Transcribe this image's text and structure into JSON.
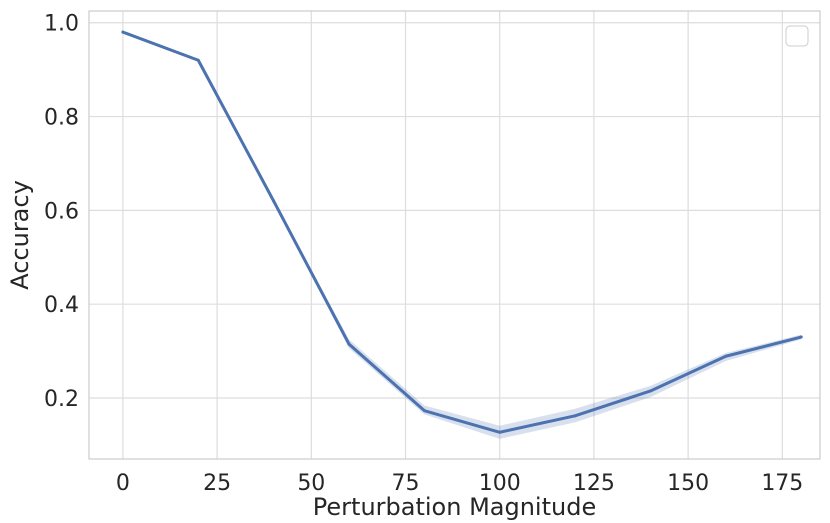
{
  "chart_data": {
    "type": "line",
    "title": "",
    "xlabel": "Perturbation Magnitude",
    "ylabel": "Accuracy",
    "xlim": [
      -9,
      185
    ],
    "ylim": [
      0.07,
      1.025
    ],
    "xticks": [
      0,
      25,
      50,
      75,
      100,
      125,
      150,
      175
    ],
    "yticks": [
      0.2,
      0.4,
      0.6,
      0.8,
      1.0
    ],
    "xtick_labels": [
      "0",
      "25",
      "50",
      "75",
      "100",
      "125",
      "150",
      "175"
    ],
    "ytick_labels": [
      "0.2",
      "0.4",
      "0.6",
      "0.8",
      "1.0"
    ],
    "grid": true,
    "legend": "top-right, empty",
    "series": [
      {
        "color": "#4c72b0",
        "x": [
          0,
          20,
          40,
          60,
          80,
          100,
          120,
          140,
          160,
          180
        ],
        "y": [
          0.98,
          0.92,
          0.62,
          0.315,
          0.173,
          0.127,
          0.162,
          0.215,
          0.289,
          0.33
        ],
        "ci_low": [
          0.979,
          0.919,
          0.617,
          0.306,
          0.165,
          0.113,
          0.148,
          0.202,
          0.279,
          0.325
        ],
        "ci_high": [
          0.981,
          0.921,
          0.623,
          0.325,
          0.184,
          0.141,
          0.177,
          0.226,
          0.296,
          0.335
        ]
      }
    ]
  }
}
